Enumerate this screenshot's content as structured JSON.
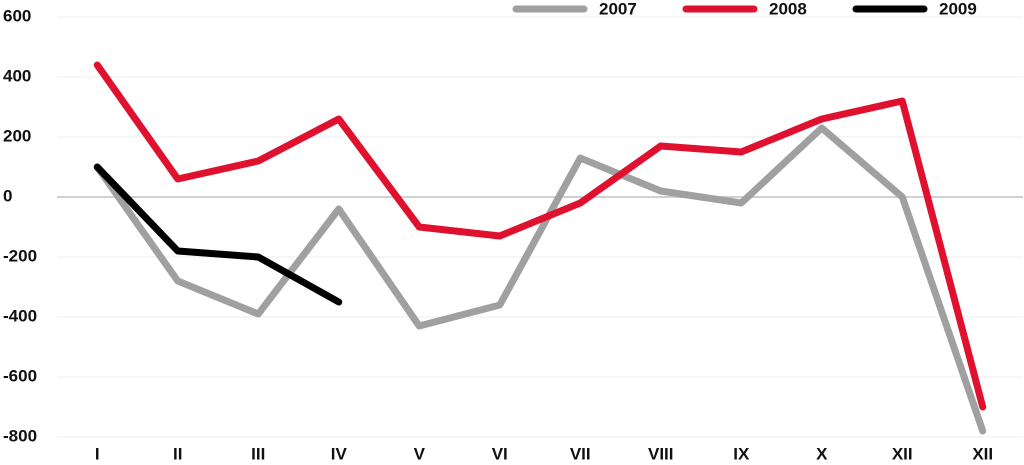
{
  "chart_data": {
    "type": "line",
    "categories": [
      "I",
      "II",
      "III",
      "IV",
      "V",
      "VI",
      "VII",
      "VIII",
      "IX",
      "X",
      "XII",
      "XII"
    ],
    "series": [
      {
        "name": "2007",
        "color": "#a0a0a0",
        "values": [
          100,
          -280,
          -390,
          -40,
          -430,
          -360,
          130,
          20,
          -20,
          230,
          0,
          -780
        ]
      },
      {
        "name": "2008",
        "color": "#e0102f",
        "values": [
          440,
          60,
          120,
          260,
          -100,
          -130,
          -20,
          170,
          150,
          260,
          320,
          -700
        ]
      },
      {
        "name": "2009",
        "color": "#000000",
        "values": [
          100,
          -180,
          -200,
          -350,
          null,
          null,
          null,
          null,
          null,
          null,
          null,
          null
        ]
      }
    ],
    "ylim": [
      -800,
      600
    ],
    "yticks": [
      600,
      400,
      200,
      0,
      -200,
      -400,
      -600,
      -800
    ],
    "grid": true,
    "legend": "top-right"
  }
}
